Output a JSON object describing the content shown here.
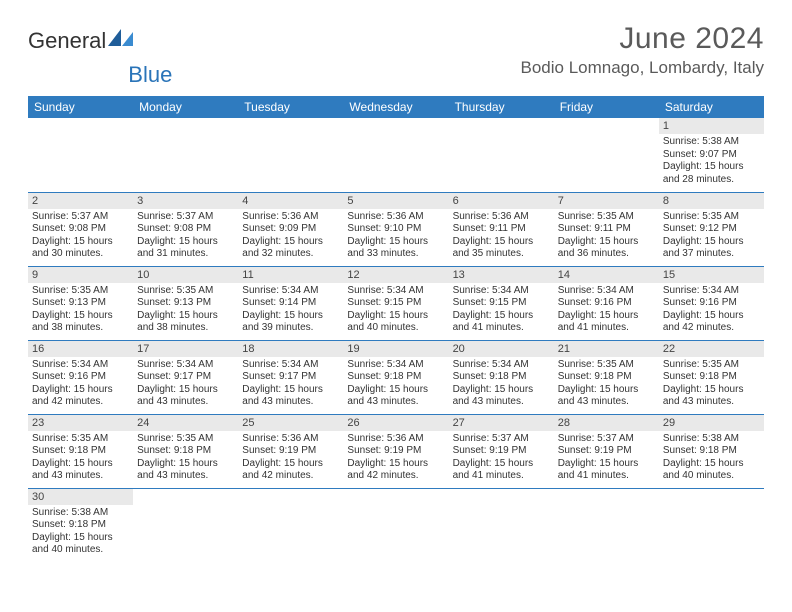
{
  "logo": {
    "text1": "General",
    "text2": "Blue"
  },
  "title": "June 2024",
  "location": "Bodio Lomnago, Lombardy, Italy",
  "colors": {
    "header_bg": "#2f7bbf",
    "header_text": "#ffffff",
    "daynum_bg": "#e9e9e9",
    "row_border": "#2f7bbf",
    "title_color": "#5a5a5a"
  },
  "weekdays": [
    "Sunday",
    "Monday",
    "Tuesday",
    "Wednesday",
    "Thursday",
    "Friday",
    "Saturday"
  ],
  "weeks": [
    [
      null,
      null,
      null,
      null,
      null,
      null,
      {
        "n": "1",
        "sunrise": "Sunrise: 5:38 AM",
        "sunset": "Sunset: 9:07 PM",
        "daylight": "Daylight: 15 hours and 28 minutes."
      }
    ],
    [
      {
        "n": "2",
        "sunrise": "Sunrise: 5:37 AM",
        "sunset": "Sunset: 9:08 PM",
        "daylight": "Daylight: 15 hours and 30 minutes."
      },
      {
        "n": "3",
        "sunrise": "Sunrise: 5:37 AM",
        "sunset": "Sunset: 9:08 PM",
        "daylight": "Daylight: 15 hours and 31 minutes."
      },
      {
        "n": "4",
        "sunrise": "Sunrise: 5:36 AM",
        "sunset": "Sunset: 9:09 PM",
        "daylight": "Daylight: 15 hours and 32 minutes."
      },
      {
        "n": "5",
        "sunrise": "Sunrise: 5:36 AM",
        "sunset": "Sunset: 9:10 PM",
        "daylight": "Daylight: 15 hours and 33 minutes."
      },
      {
        "n": "6",
        "sunrise": "Sunrise: 5:36 AM",
        "sunset": "Sunset: 9:11 PM",
        "daylight": "Daylight: 15 hours and 35 minutes."
      },
      {
        "n": "7",
        "sunrise": "Sunrise: 5:35 AM",
        "sunset": "Sunset: 9:11 PM",
        "daylight": "Daylight: 15 hours and 36 minutes."
      },
      {
        "n": "8",
        "sunrise": "Sunrise: 5:35 AM",
        "sunset": "Sunset: 9:12 PM",
        "daylight": "Daylight: 15 hours and 37 minutes."
      }
    ],
    [
      {
        "n": "9",
        "sunrise": "Sunrise: 5:35 AM",
        "sunset": "Sunset: 9:13 PM",
        "daylight": "Daylight: 15 hours and 38 minutes."
      },
      {
        "n": "10",
        "sunrise": "Sunrise: 5:35 AM",
        "sunset": "Sunset: 9:13 PM",
        "daylight": "Daylight: 15 hours and 38 minutes."
      },
      {
        "n": "11",
        "sunrise": "Sunrise: 5:34 AM",
        "sunset": "Sunset: 9:14 PM",
        "daylight": "Daylight: 15 hours and 39 minutes."
      },
      {
        "n": "12",
        "sunrise": "Sunrise: 5:34 AM",
        "sunset": "Sunset: 9:15 PM",
        "daylight": "Daylight: 15 hours and 40 minutes."
      },
      {
        "n": "13",
        "sunrise": "Sunrise: 5:34 AM",
        "sunset": "Sunset: 9:15 PM",
        "daylight": "Daylight: 15 hours and 41 minutes."
      },
      {
        "n": "14",
        "sunrise": "Sunrise: 5:34 AM",
        "sunset": "Sunset: 9:16 PM",
        "daylight": "Daylight: 15 hours and 41 minutes."
      },
      {
        "n": "15",
        "sunrise": "Sunrise: 5:34 AM",
        "sunset": "Sunset: 9:16 PM",
        "daylight": "Daylight: 15 hours and 42 minutes."
      }
    ],
    [
      {
        "n": "16",
        "sunrise": "Sunrise: 5:34 AM",
        "sunset": "Sunset: 9:16 PM",
        "daylight": "Daylight: 15 hours and 42 minutes."
      },
      {
        "n": "17",
        "sunrise": "Sunrise: 5:34 AM",
        "sunset": "Sunset: 9:17 PM",
        "daylight": "Daylight: 15 hours and 43 minutes."
      },
      {
        "n": "18",
        "sunrise": "Sunrise: 5:34 AM",
        "sunset": "Sunset: 9:17 PM",
        "daylight": "Daylight: 15 hours and 43 minutes."
      },
      {
        "n": "19",
        "sunrise": "Sunrise: 5:34 AM",
        "sunset": "Sunset: 9:18 PM",
        "daylight": "Daylight: 15 hours and 43 minutes."
      },
      {
        "n": "20",
        "sunrise": "Sunrise: 5:34 AM",
        "sunset": "Sunset: 9:18 PM",
        "daylight": "Daylight: 15 hours and 43 minutes."
      },
      {
        "n": "21",
        "sunrise": "Sunrise: 5:35 AM",
        "sunset": "Sunset: 9:18 PM",
        "daylight": "Daylight: 15 hours and 43 minutes."
      },
      {
        "n": "22",
        "sunrise": "Sunrise: 5:35 AM",
        "sunset": "Sunset: 9:18 PM",
        "daylight": "Daylight: 15 hours and 43 minutes."
      }
    ],
    [
      {
        "n": "23",
        "sunrise": "Sunrise: 5:35 AM",
        "sunset": "Sunset: 9:18 PM",
        "daylight": "Daylight: 15 hours and 43 minutes."
      },
      {
        "n": "24",
        "sunrise": "Sunrise: 5:35 AM",
        "sunset": "Sunset: 9:18 PM",
        "daylight": "Daylight: 15 hours and 43 minutes."
      },
      {
        "n": "25",
        "sunrise": "Sunrise: 5:36 AM",
        "sunset": "Sunset: 9:19 PM",
        "daylight": "Daylight: 15 hours and 42 minutes."
      },
      {
        "n": "26",
        "sunrise": "Sunrise: 5:36 AM",
        "sunset": "Sunset: 9:19 PM",
        "daylight": "Daylight: 15 hours and 42 minutes."
      },
      {
        "n": "27",
        "sunrise": "Sunrise: 5:37 AM",
        "sunset": "Sunset: 9:19 PM",
        "daylight": "Daylight: 15 hours and 41 minutes."
      },
      {
        "n": "28",
        "sunrise": "Sunrise: 5:37 AM",
        "sunset": "Sunset: 9:19 PM",
        "daylight": "Daylight: 15 hours and 41 minutes."
      },
      {
        "n": "29",
        "sunrise": "Sunrise: 5:38 AM",
        "sunset": "Sunset: 9:18 PM",
        "daylight": "Daylight: 15 hours and 40 minutes."
      }
    ],
    [
      {
        "n": "30",
        "sunrise": "Sunrise: 5:38 AM",
        "sunset": "Sunset: 9:18 PM",
        "daylight": "Daylight: 15 hours and 40 minutes."
      },
      null,
      null,
      null,
      null,
      null,
      null
    ]
  ]
}
